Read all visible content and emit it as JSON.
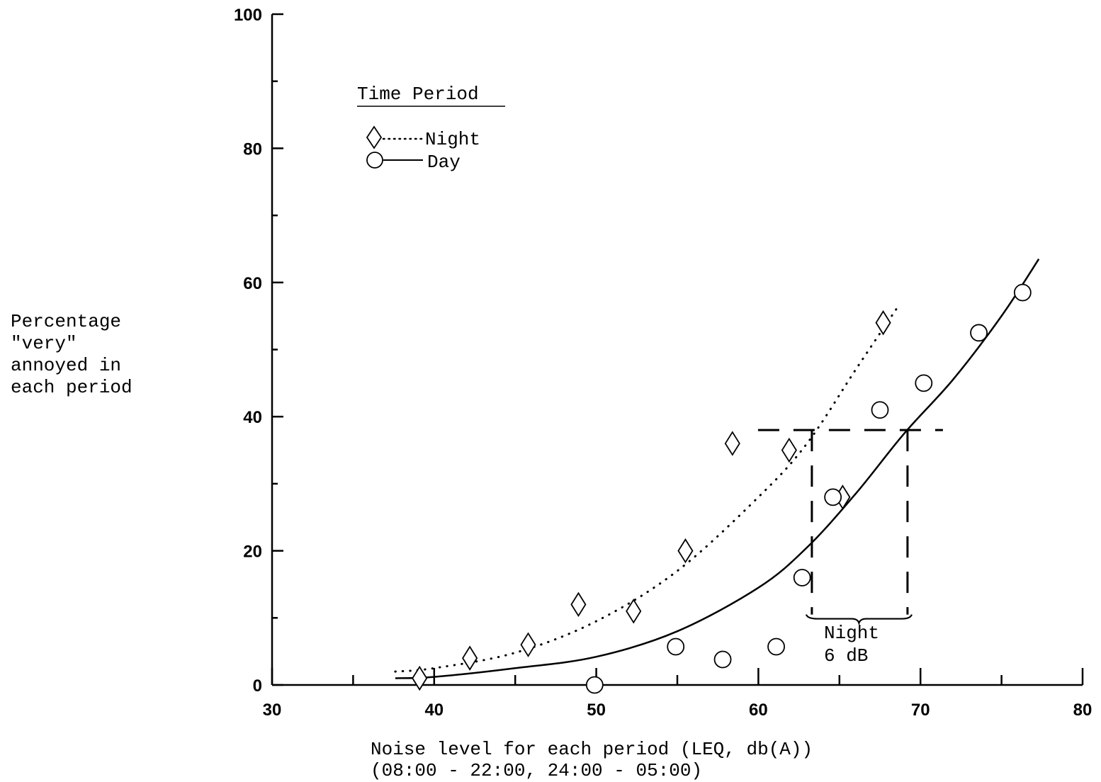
{
  "chart_data": {
    "type": "scatter",
    "xlabel_lines": [
      "Noise level for each period (LEQ, db(A))",
      "(08:00 - 22:00, 24:00 - 05:00)"
    ],
    "ylabel_lines": [
      "Percentage",
      "\"very\"",
      "annoyed in",
      "each period"
    ],
    "xlim": [
      30,
      80
    ],
    "ylim": [
      0,
      100
    ],
    "xticks": [
      30,
      40,
      50,
      60,
      70,
      80
    ],
    "yticks": [
      0,
      20,
      40,
      60,
      80,
      100
    ],
    "legend": {
      "title": "Time Period",
      "placement": "top-left",
      "items": [
        {
          "label": "Night",
          "marker": "diamond",
          "line": "dotted"
        },
        {
          "label": "Day",
          "marker": "circle",
          "line": "solid"
        }
      ]
    },
    "series": [
      {
        "name": "Night",
        "marker": "diamond",
        "points": [
          [
            39.1,
            1
          ],
          [
            42.2,
            4
          ],
          [
            45.8,
            6
          ],
          [
            48.9,
            12
          ],
          [
            52.3,
            11
          ],
          [
            55.5,
            20
          ],
          [
            58.4,
            36
          ],
          [
            61.9,
            35
          ],
          [
            65.2,
            28
          ],
          [
            67.7,
            54
          ]
        ],
        "fit": [
          [
            37.6,
            2
          ],
          [
            40,
            2.5
          ],
          [
            45,
            4.8
          ],
          [
            50,
            9.5
          ],
          [
            55,
            17
          ],
          [
            60,
            28
          ],
          [
            63,
            36
          ],
          [
            66,
            47
          ],
          [
            68.5,
            56
          ]
        ]
      },
      {
        "name": "Day",
        "marker": "circle",
        "points": [
          [
            49.9,
            0
          ],
          [
            54.9,
            5.7
          ],
          [
            57.8,
            3.8
          ],
          [
            61.1,
            5.7
          ],
          [
            62.7,
            16
          ],
          [
            64.6,
            28
          ],
          [
            67.5,
            41
          ],
          [
            70.2,
            45
          ],
          [
            73.6,
            52.5
          ],
          [
            76.3,
            58.5
          ]
        ],
        "fit": [
          [
            37.6,
            1
          ],
          [
            40,
            1.2
          ],
          [
            45,
            2.5
          ],
          [
            50,
            4.2
          ],
          [
            55,
            8
          ],
          [
            60,
            14.5
          ],
          [
            63,
            20.5
          ],
          [
            66,
            28.5
          ],
          [
            69,
            37.5
          ],
          [
            72,
            45.5
          ],
          [
            75,
            55
          ],
          [
            77.3,
            63.5
          ]
        ]
      }
    ],
    "annotation": {
      "lines": [
        "Night",
        "6 dB"
      ],
      "level": 38,
      "from_x": 63.3,
      "to_x": 69.2
    }
  }
}
